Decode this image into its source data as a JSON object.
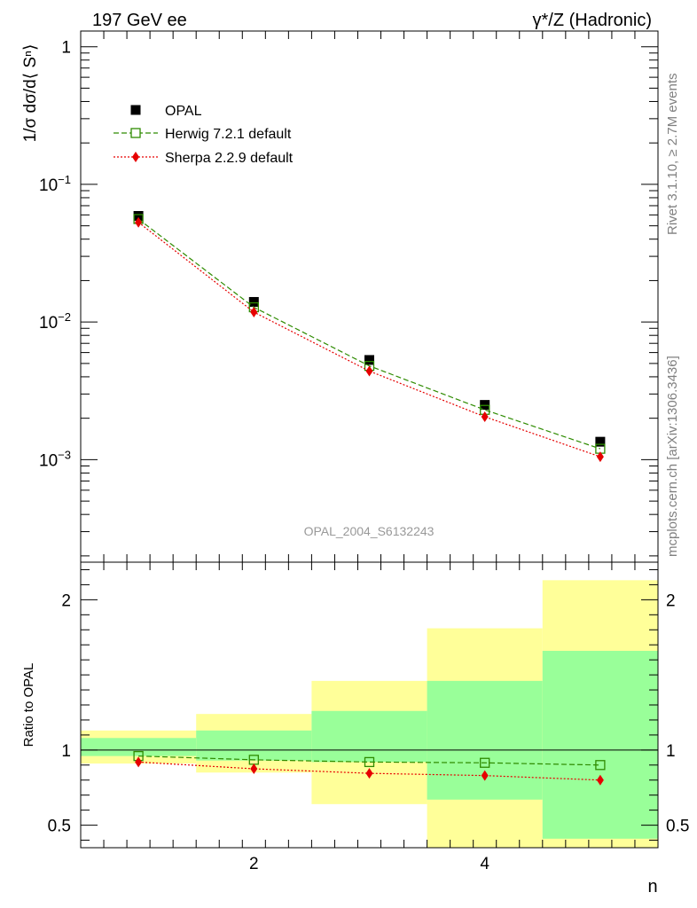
{
  "header": {
    "left_title": "197 GeV ee",
    "right_title": "γ*/Z (Hadronic)"
  },
  "side_labels": {
    "rivet": "Rivet 3.1.10, ≥ 2.7M events",
    "mcplots": "mcplots.cern.ch [arXiv:1306.3436]"
  },
  "watermark": "OPAL_2004_S6132243",
  "colors": {
    "data": "#000000",
    "herwig": "#2e8b00",
    "sherpa": "#e60000",
    "band_outer": "#ffff99",
    "band_inner": "#99ff99"
  },
  "chart_data": [
    {
      "type": "scatter",
      "panel": "main",
      "ylabel": "1/σ dσ/d⟨ Sⁿ⟩",
      "yscale": "log",
      "ylim": [
        0.00018,
        1.3
      ],
      "xlim": [
        0.5,
        5.5
      ],
      "yticks": [
        {
          "value": 1,
          "base": "1",
          "exp": ""
        },
        {
          "value": 0.1,
          "base": "10",
          "exp": "−1"
        },
        {
          "value": 0.01,
          "base": "10",
          "exp": "−2"
        },
        {
          "value": 0.001,
          "base": "10",
          "exp": "−3"
        }
      ],
      "legend_placement": "top-left",
      "series": [
        {
          "name": "OPAL",
          "marker": "filled-square",
          "x": [
            1,
            2,
            3,
            4,
            5
          ],
          "y": [
            0.059,
            0.014,
            0.0053,
            0.0025,
            0.00135
          ]
        },
        {
          "name": "Herwig 7.2.1 default",
          "marker": "open-square",
          "line": "dashed",
          "x": [
            1,
            2,
            3,
            4,
            5
          ],
          "y": [
            0.056,
            0.0128,
            0.0048,
            0.0023,
            0.0012
          ]
        },
        {
          "name": "Sherpa 2.2.9 default",
          "marker": "diamond",
          "line": "dotted",
          "x": [
            1,
            2,
            3,
            4,
            5
          ],
          "y": [
            0.053,
            0.0118,
            0.0044,
            0.00205,
            0.00105
          ]
        }
      ]
    },
    {
      "type": "line",
      "panel": "ratio",
      "xlabel": "n",
      "ylabel": "Ratio to OPAL",
      "ylim": [
        0.35,
        2.25
      ],
      "xlim": [
        0.5,
        5.5
      ],
      "xticks": [
        {
          "value": 2,
          "label": "2"
        },
        {
          "value": 4,
          "label": "4"
        }
      ],
      "yticks": [
        {
          "value": 0.5,
          "label": "0.5"
        },
        {
          "value": 1,
          "label": "1"
        },
        {
          "value": 2,
          "label": "2"
        }
      ],
      "bands": [
        {
          "x0": 0.5,
          "x1": 1.5,
          "outer": [
            0.91,
            1.13
          ],
          "inner": [
            0.96,
            1.08
          ]
        },
        {
          "x0": 1.5,
          "x1": 2.5,
          "outer": [
            0.85,
            1.24
          ],
          "inner": [
            0.93,
            1.13
          ]
        },
        {
          "x0": 2.5,
          "x1": 3.5,
          "outer": [
            0.64,
            1.46
          ],
          "inner": [
            0.92,
            1.26
          ]
        },
        {
          "x0": 3.5,
          "x1": 4.5,
          "outer": [
            0.35,
            1.81
          ],
          "inner": [
            0.67,
            1.46
          ]
        },
        {
          "x0": 4.5,
          "x1": 5.5,
          "outer": [
            0.35,
            2.13
          ],
          "inner": [
            0.41,
            1.66
          ]
        }
      ],
      "series": [
        {
          "name": "Herwig 7.2.1 default",
          "x": [
            1,
            2,
            3,
            4,
            5
          ],
          "y": [
            0.96,
            0.935,
            0.92,
            0.915,
            0.9
          ]
        },
        {
          "name": "Sherpa 2.2.9 default",
          "x": [
            1,
            2,
            3,
            4,
            5
          ],
          "y": [
            0.92,
            0.875,
            0.845,
            0.83,
            0.8
          ]
        }
      ]
    }
  ]
}
